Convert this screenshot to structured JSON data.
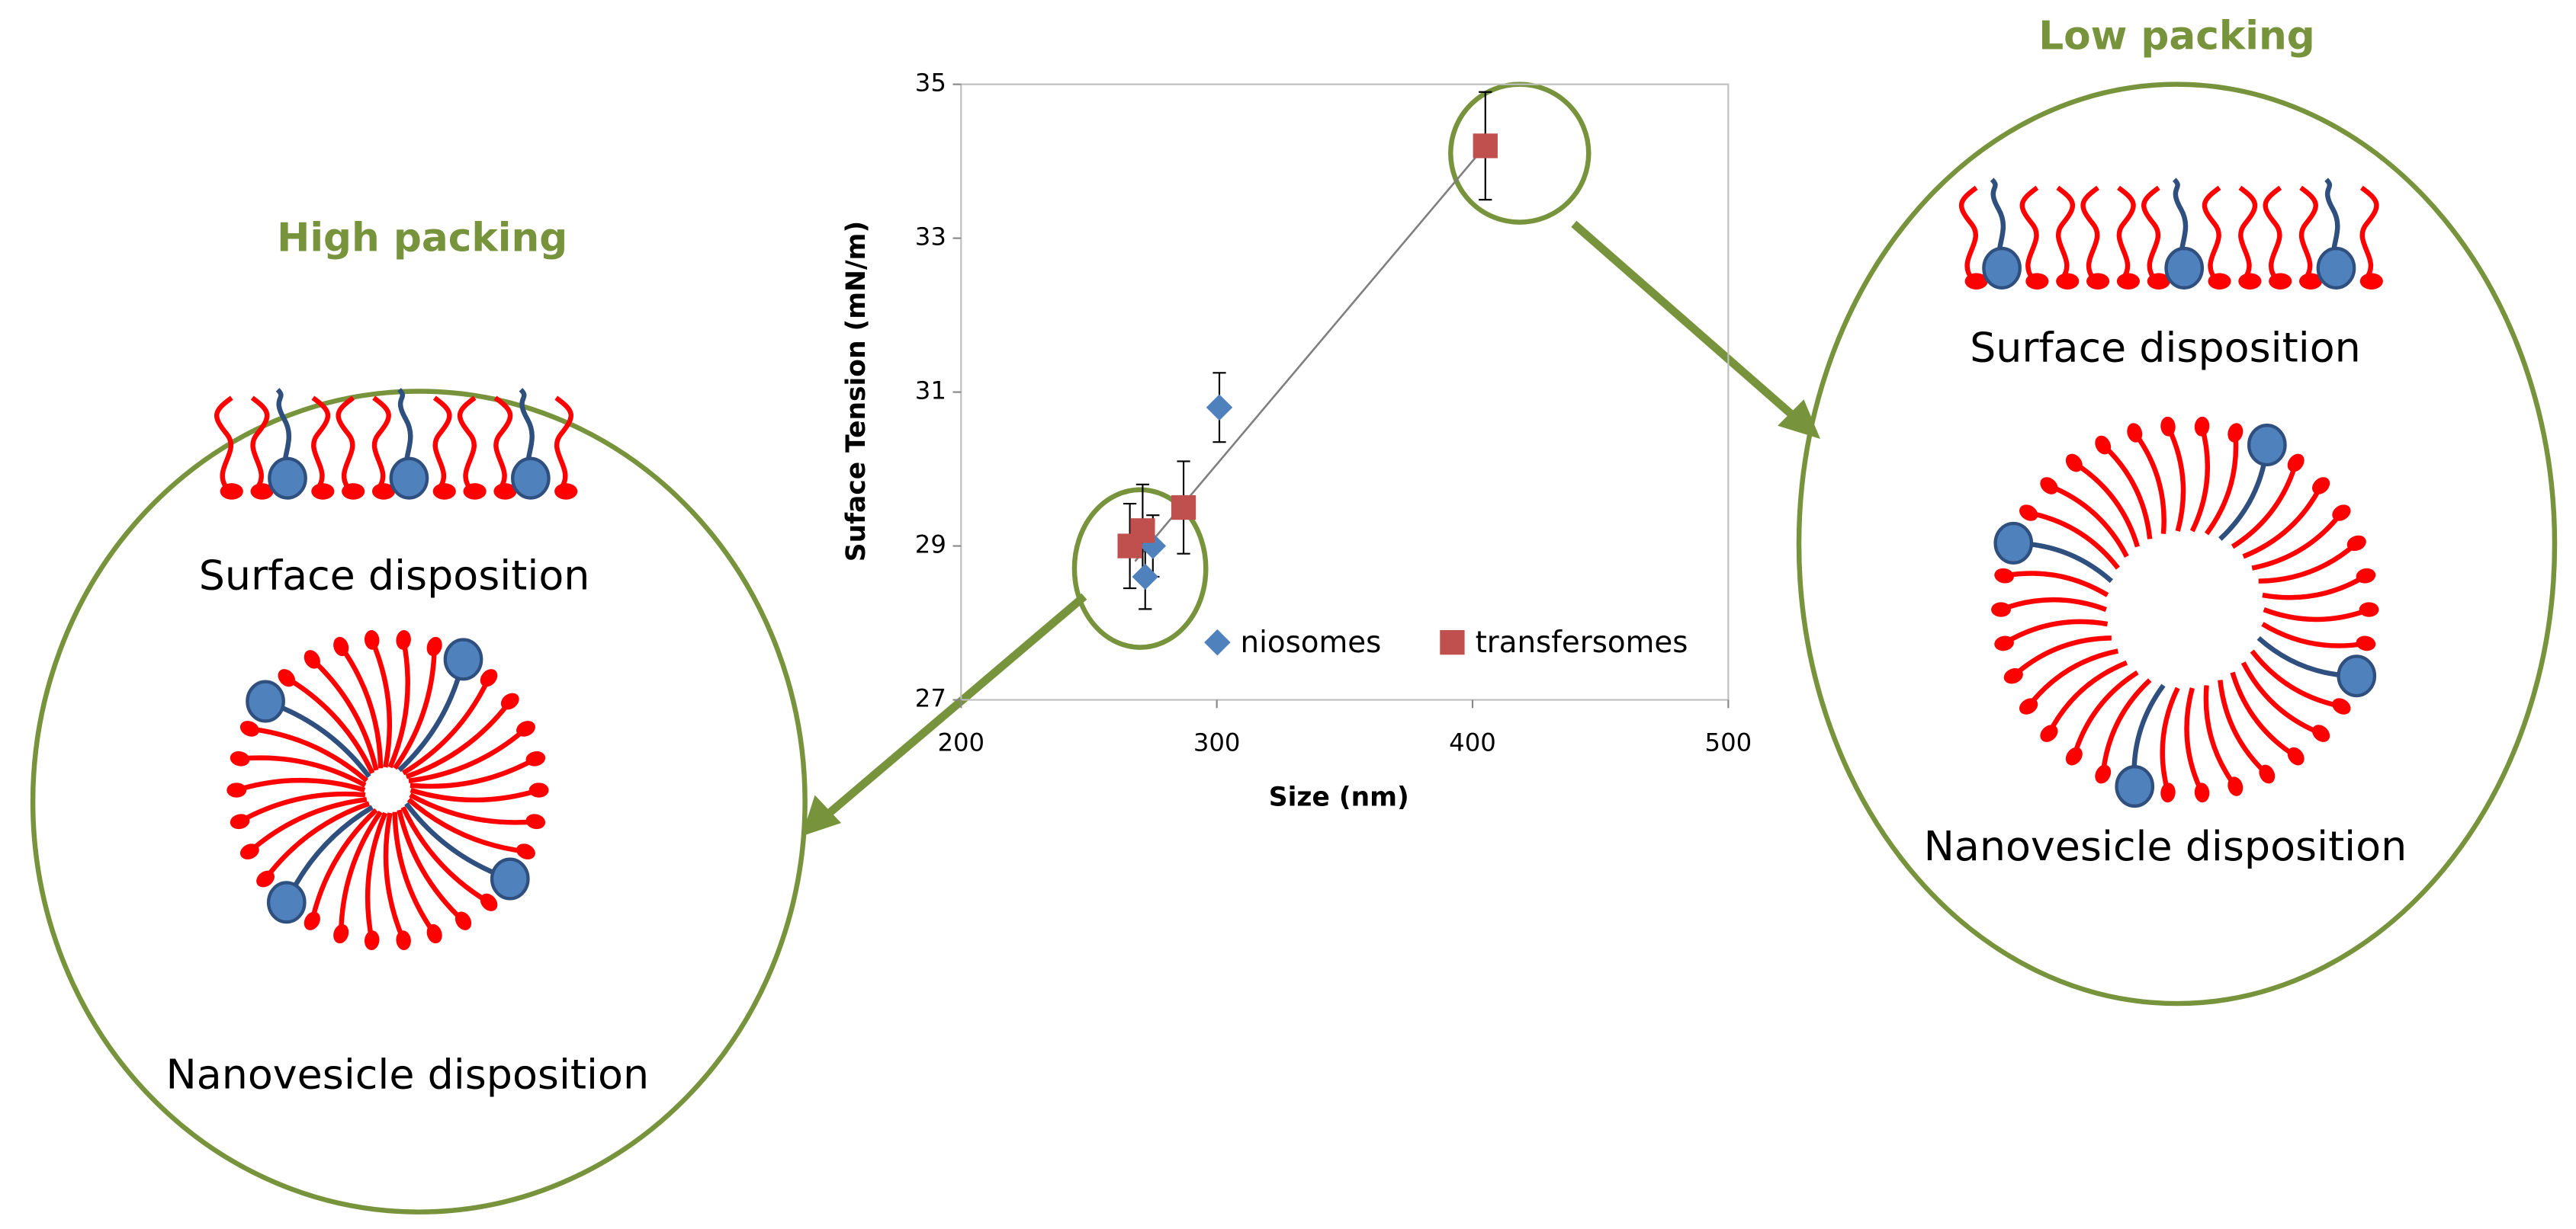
{
  "chart_data": {
    "type": "scatter",
    "xlabel": "Size (nm)",
    "ylabel": "Suface Tension (mN/m)",
    "xlim": [
      200,
      500
    ],
    "xticks": [
      200,
      300,
      400,
      500
    ],
    "ylim": [
      27,
      35
    ],
    "yticks": [
      27,
      29,
      31,
      33,
      35
    ],
    "series": [
      {
        "name": "niosomes",
        "color": "#4f81bd",
        "marker": "diamond",
        "x": [
          272,
          275,
          301
        ],
        "values": [
          28.6,
          29.0,
          30.8
        ],
        "errors": [
          0.42,
          0.4,
          0.45
        ]
      },
      {
        "name": "transfersomes",
        "color": "#c0504d",
        "marker": "square",
        "x": [
          266,
          271,
          287,
          405
        ],
        "values": [
          29.0,
          29.2,
          29.5,
          34.2
        ],
        "errors": [
          0.55,
          0.6,
          0.6,
          0.7
        ]
      }
    ],
    "trendline": {
      "color": "#7f7f7f",
      "x": [
        268,
        405
      ],
      "values": [
        28.8,
        34.2
      ]
    }
  },
  "panels": [
    {
      "title": "High packing",
      "surface_label": "Surface disposition",
      "vesicle_label": "Nanovesicle disposition"
    },
    {
      "title": "Low packing",
      "surface_label": "Surface disposition",
      "vesicle_label": "Nanovesicle disposition"
    }
  ]
}
